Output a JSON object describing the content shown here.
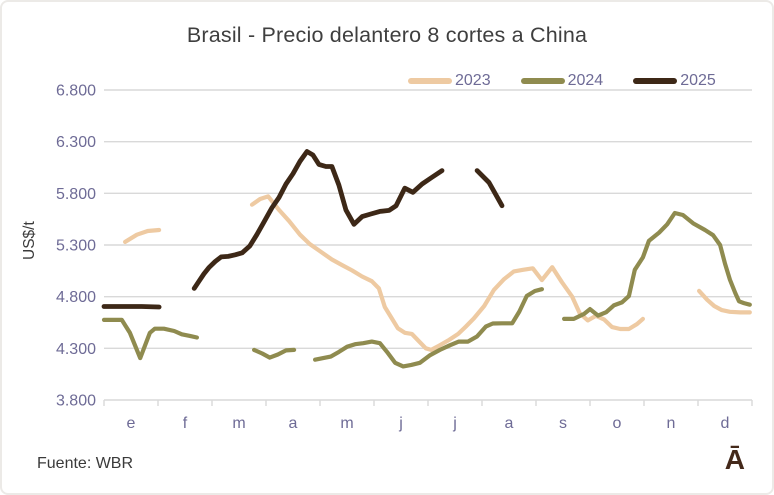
{
  "title": "Brasil - Precio delantero 8 cortes a China",
  "source": {
    "text": "Fuente: WBR"
  },
  "logo": {
    "text": "Ā"
  },
  "colors": {
    "series_2023": "#eecaa2",
    "series_2024": "#8f8b4f",
    "series_2025": "#3d2817",
    "grid": "#d9d9d9",
    "axis_text": "#6e6b96",
    "title_text": "#3f3f3f"
  },
  "chart_data": {
    "type": "line",
    "title": "Brasil - Precio delantero 8 cortes a China",
    "xlabel": "",
    "ylabel": "US$/t",
    "ylim": [
      3800,
      6800
    ],
    "grid": "horizontal",
    "legend_position": "top-right",
    "x_unit": "month position, 0 = start of January, 12 = end of December",
    "yticks": [
      3800,
      4300,
      4800,
      5300,
      5800,
      6300,
      6800
    ],
    "ytick_labels": [
      "3.800",
      "4.300",
      "4.800",
      "5.300",
      "5.800",
      "6.300",
      "6.800"
    ],
    "x_month_labels": [
      "e",
      "f",
      "m",
      "a",
      "m",
      "j",
      "j",
      "a",
      "s",
      "o",
      "n",
      "d"
    ],
    "series": [
      {
        "name": "2023",
        "color": "#eecaa2",
        "width": 4.2,
        "segments": [
          [
            [
              0.39,
              5330
            ],
            [
              0.61,
              5400
            ],
            [
              0.81,
              5435
            ],
            [
              1.02,
              5445
            ]
          ],
          [
            [
              2.74,
              5690
            ],
            [
              2.89,
              5745
            ],
            [
              3.04,
              5770
            ],
            [
              3.24,
              5640
            ],
            [
              3.43,
              5530
            ],
            [
              3.63,
              5400
            ],
            [
              3.81,
              5310
            ],
            [
              4.0,
              5240
            ],
            [
              4.22,
              5160
            ],
            [
              4.41,
              5105
            ],
            [
              4.59,
              5055
            ],
            [
              4.78,
              4995
            ],
            [
              4.96,
              4950
            ],
            [
              5.09,
              4880
            ],
            [
              5.2,
              4700
            ],
            [
              5.33,
              4590
            ],
            [
              5.44,
              4495
            ],
            [
              5.57,
              4450
            ],
            [
              5.7,
              4440
            ],
            [
              5.83,
              4370
            ],
            [
              5.96,
              4300
            ],
            [
              6.06,
              4285
            ],
            [
              6.2,
              4325
            ],
            [
              6.37,
              4375
            ],
            [
              6.56,
              4440
            ],
            [
              6.7,
              4510
            ],
            [
              6.85,
              4590
            ],
            [
              7.04,
              4710
            ],
            [
              7.22,
              4865
            ],
            [
              7.41,
              4970
            ],
            [
              7.59,
              5045
            ],
            [
              7.76,
              5060
            ],
            [
              7.94,
              5075
            ],
            [
              8.11,
              4960
            ],
            [
              8.3,
              5085
            ],
            [
              8.48,
              4940
            ],
            [
              8.67,
              4800
            ],
            [
              8.81,
              4640
            ],
            [
              8.96,
              4570
            ],
            [
              9.11,
              4615
            ],
            [
              9.26,
              4580
            ],
            [
              9.41,
              4505
            ],
            [
              9.56,
              4487
            ],
            [
              9.72,
              4487
            ],
            [
              9.87,
              4535
            ],
            [
              9.98,
              4585
            ]
          ],
          [
            [
              11.02,
              4856
            ],
            [
              11.17,
              4770
            ],
            [
              11.3,
              4710
            ],
            [
              11.44,
              4670
            ],
            [
              11.59,
              4654
            ],
            [
              11.78,
              4648
            ],
            [
              11.96,
              4648
            ]
          ]
        ]
      },
      {
        "name": "2024",
        "color": "#8f8b4f",
        "width": 4.2,
        "segments": [
          [
            [
              0.0,
              4575
            ],
            [
              0.19,
              4575
            ],
            [
              0.33,
              4575
            ],
            [
              0.48,
              4450
            ],
            [
              0.67,
              4205
            ],
            [
              0.85,
              4450
            ],
            [
              0.94,
              4490
            ],
            [
              1.11,
              4490
            ],
            [
              1.3,
              4468
            ],
            [
              1.44,
              4436
            ],
            [
              1.59,
              4420
            ],
            [
              1.72,
              4405
            ]
          ],
          [
            [
              2.78,
              4285
            ],
            [
              2.93,
              4250
            ],
            [
              3.07,
              4210
            ],
            [
              3.22,
              4240
            ],
            [
              3.37,
              4280
            ],
            [
              3.52,
              4285
            ]
          ],
          [
            [
              3.91,
              4190
            ],
            [
              4.06,
              4205
            ],
            [
              4.2,
              4220
            ],
            [
              4.35,
              4265
            ],
            [
              4.5,
              4315
            ],
            [
              4.65,
              4340
            ],
            [
              4.8,
              4350
            ],
            [
              4.96,
              4365
            ],
            [
              5.11,
              4350
            ],
            [
              5.24,
              4265
            ],
            [
              5.39,
              4160
            ],
            [
              5.54,
              4125
            ],
            [
              5.69,
              4140
            ],
            [
              5.85,
              4160
            ],
            [
              6.04,
              4235
            ],
            [
              6.22,
              4285
            ],
            [
              6.41,
              4330
            ],
            [
              6.57,
              4365
            ],
            [
              6.74,
              4365
            ],
            [
              6.91,
              4415
            ],
            [
              7.07,
              4510
            ],
            [
              7.2,
              4540
            ],
            [
              7.37,
              4542
            ],
            [
              7.56,
              4542
            ],
            [
              7.69,
              4655
            ],
            [
              7.83,
              4807
            ],
            [
              7.98,
              4855
            ],
            [
              8.11,
              4872
            ]
          ],
          [
            [
              8.52,
              4585
            ],
            [
              8.7,
              4585
            ],
            [
              8.89,
              4633
            ],
            [
              9.0,
              4680
            ],
            [
              9.15,
              4617
            ],
            [
              9.3,
              4650
            ],
            [
              9.44,
              4715
            ],
            [
              9.59,
              4745
            ],
            [
              9.72,
              4805
            ],
            [
              9.83,
              5060
            ],
            [
              9.98,
              5180
            ],
            [
              10.09,
              5340
            ],
            [
              10.28,
              5420
            ],
            [
              10.43,
              5500
            ],
            [
              10.57,
              5610
            ],
            [
              10.72,
              5590
            ],
            [
              10.91,
              5510
            ],
            [
              11.13,
              5445
            ],
            [
              11.28,
              5395
            ],
            [
              11.41,
              5300
            ],
            [
              11.5,
              5120
            ],
            [
              11.59,
              4965
            ],
            [
              11.69,
              4835
            ],
            [
              11.76,
              4755
            ],
            [
              11.85,
              4738
            ],
            [
              11.96,
              4722
            ]
          ]
        ]
      },
      {
        "name": "2025",
        "color": "#3d2817",
        "width": 4.8,
        "segments": [
          [
            [
              0.0,
              4705
            ],
            [
              0.35,
              4705
            ],
            [
              0.7,
              4705
            ],
            [
              1.02,
              4700
            ]
          ],
          [
            [
              1.67,
              4880
            ],
            [
              1.76,
              4950
            ],
            [
              1.85,
              5020
            ],
            [
              1.94,
              5080
            ],
            [
              2.06,
              5140
            ],
            [
              2.17,
              5185
            ],
            [
              2.3,
              5190
            ],
            [
              2.43,
              5205
            ],
            [
              2.56,
              5225
            ],
            [
              2.7,
              5290
            ],
            [
              2.83,
              5400
            ],
            [
              2.96,
              5520
            ],
            [
              3.11,
              5660
            ],
            [
              3.24,
              5760
            ],
            [
              3.37,
              5890
            ],
            [
              3.5,
              5990
            ],
            [
              3.63,
              6110
            ],
            [
              3.76,
              6205
            ],
            [
              3.87,
              6170
            ],
            [
              3.98,
              6080
            ],
            [
              4.11,
              6060
            ],
            [
              4.22,
              6060
            ],
            [
              4.35,
              5880
            ],
            [
              4.48,
              5640
            ],
            [
              4.63,
              5500
            ],
            [
              4.78,
              5575
            ],
            [
              4.94,
              5600
            ],
            [
              5.11,
              5625
            ],
            [
              5.28,
              5635
            ],
            [
              5.41,
              5680
            ],
            [
              5.57,
              5850
            ],
            [
              5.72,
              5810
            ],
            [
              5.89,
              5890
            ],
            [
              6.06,
              5950
            ],
            [
              6.26,
              6020
            ]
          ],
          [
            [
              6.91,
              6020
            ],
            [
              7.13,
              5905
            ],
            [
              7.37,
              5680
            ]
          ]
        ]
      }
    ]
  }
}
